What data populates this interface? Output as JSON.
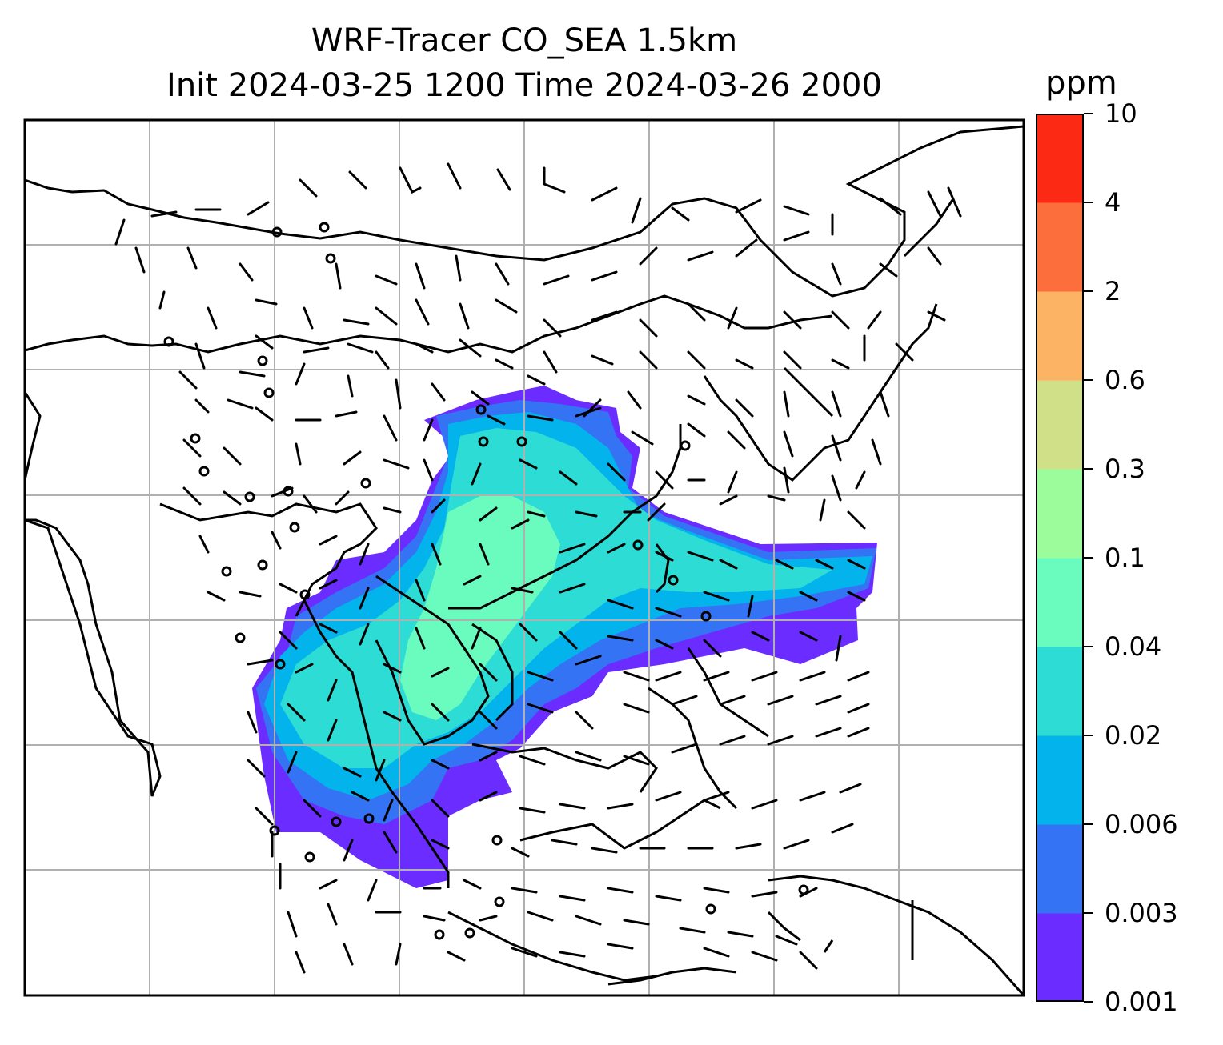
{
  "title": {
    "line1": "WRF-Tracer CO_SEA 1.5km",
    "line2": "Init 2024-03-25 1200 Time 2024-03-26 2000"
  },
  "colorbar": {
    "unit": "ppm",
    "ticks": [
      "0.001",
      "0.003",
      "0.006",
      "0.02",
      "0.04",
      "0.1",
      "0.3",
      "0.6",
      "2",
      "4",
      "10"
    ],
    "colors": [
      "#6a2cff",
      "#3474f4",
      "#03b4ec",
      "#2ddcd4",
      "#69fcbe",
      "#9cfc9c",
      "#d0e088",
      "#fcb464",
      "#fc6e3c",
      "#fc2a14"
    ]
  },
  "map": {
    "type": "filled-contour with wind barbs",
    "field": "CO tracer concentration",
    "gridlines": true,
    "coastlines": true,
    "grid_color": "#b0b0b0"
  }
}
